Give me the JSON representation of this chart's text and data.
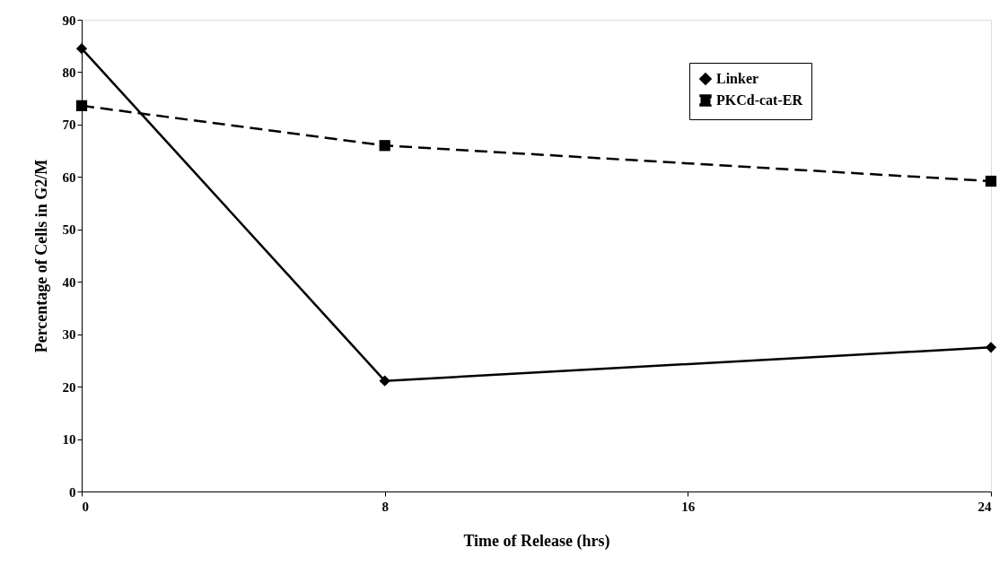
{
  "chart_data": {
    "type": "line",
    "xlabel": "Time of Release (hrs)",
    "ylabel": "Percentage of Cells in G2/M",
    "x": [
      0,
      8,
      24
    ],
    "series": [
      {
        "name": "Linker",
        "color": "#000000",
        "values": [
          84.5,
          21.1,
          27.5
        ],
        "marker": "diamond",
        "line_style": "solid"
      },
      {
        "name": "PKCd-cat-ER",
        "color": "#000000",
        "values": [
          73.6,
          66.0,
          59.2
        ],
        "marker": "square",
        "line_style": "dashed"
      }
    ],
    "xlim": [
      0,
      24
    ],
    "xticks": [
      0,
      8,
      16,
      24
    ],
    "ylim": [
      0,
      90
    ],
    "yticks": [
      0,
      10,
      20,
      30,
      40,
      50,
      60,
      70,
      80,
      90
    ],
    "grid": false,
    "legend": "top right"
  }
}
